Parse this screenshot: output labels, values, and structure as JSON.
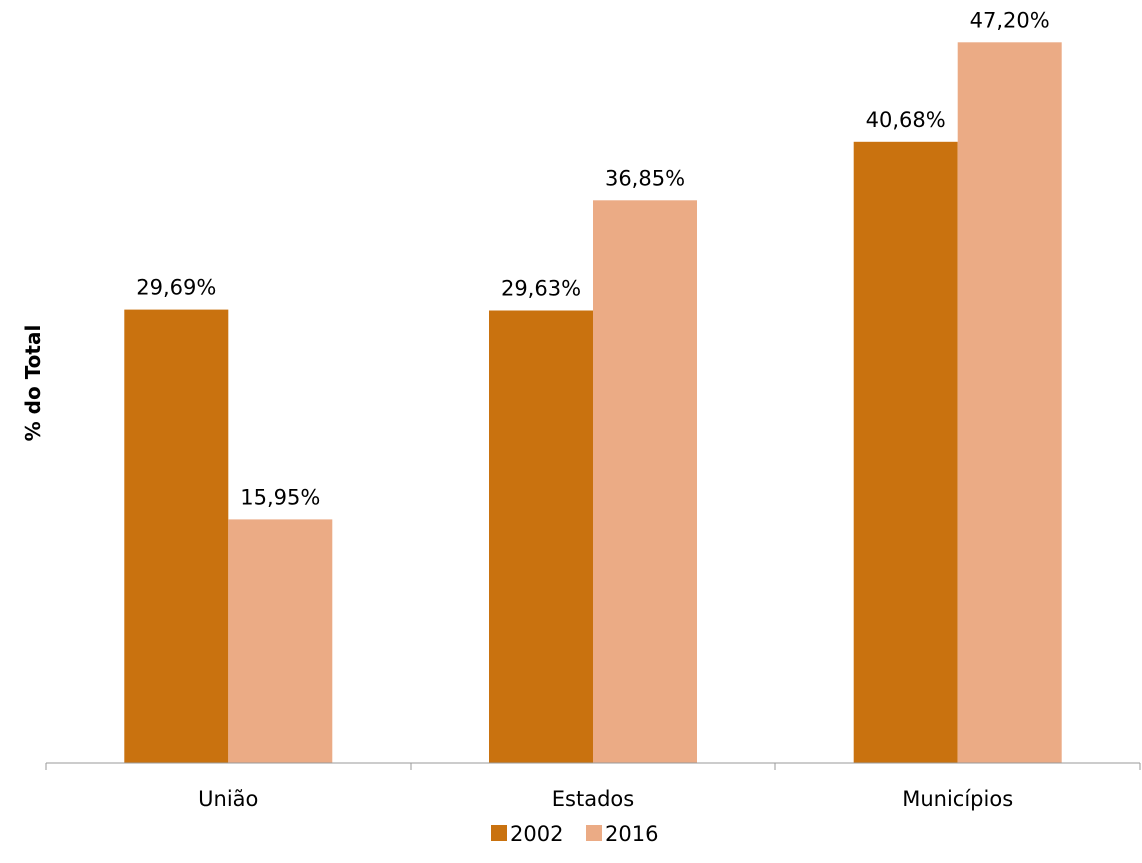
{
  "chart_data": {
    "type": "bar",
    "categories": [
      "União",
      "Estados",
      "Municípios"
    ],
    "series": [
      {
        "name": "2002",
        "values": [
          29.69,
          29.63,
          40.68
        ],
        "labels": [
          "29,69%",
          "29,63%",
          "40,68%"
        ],
        "color": "#C9720F"
      },
      {
        "name": "2016",
        "values": [
          15.95,
          36.85,
          47.2
        ],
        "labels": [
          "15,95%",
          "36,85%",
          "47,20%"
        ],
        "color": "#EBAB85"
      }
    ],
    "title": "",
    "xlabel": "",
    "ylabel": "% do Total",
    "ylim": [
      0,
      50
    ],
    "grid": false,
    "legend_position": "bottom"
  }
}
